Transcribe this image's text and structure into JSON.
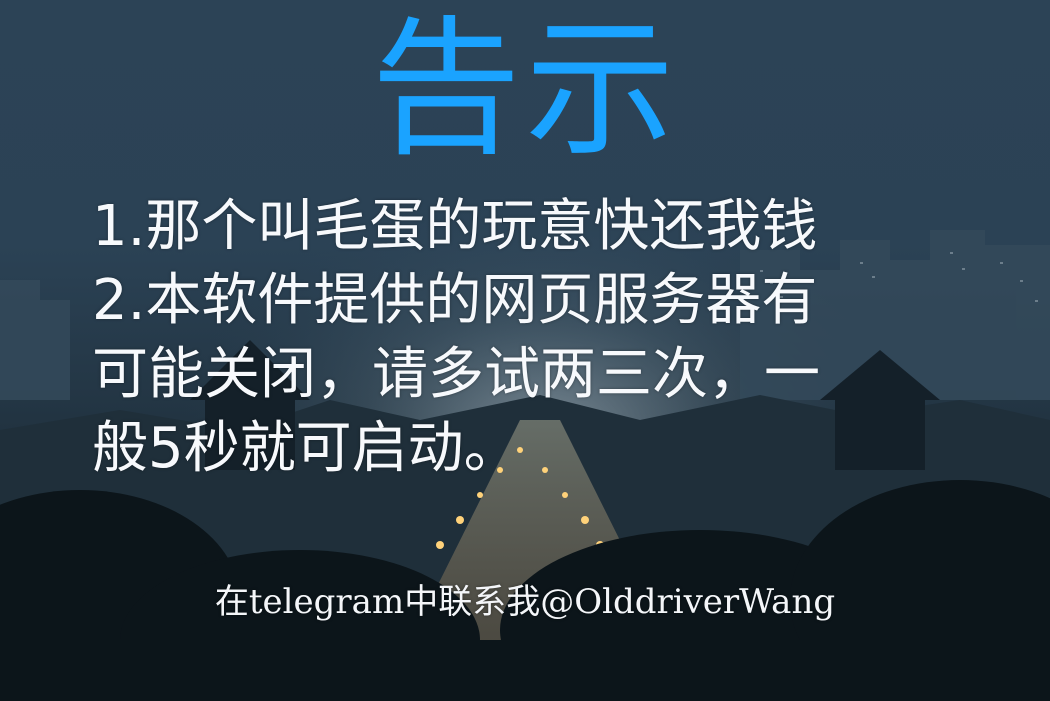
{
  "poster": {
    "title": "告示",
    "notice_lines": [
      "1.那个叫毛蛋的玩意快还我钱",
      "2.本软件提供的网页服务器有",
      "可能关闭，请多试两三次，一",
      "般5秒就可启动。"
    ],
    "contact": "在telegram中联系我@OlddriverWang"
  },
  "colors": {
    "title": "#1aa3ff",
    "text": "#f7f9fc",
    "sky": "#2c4356",
    "city_lights": "#ffd27a"
  }
}
